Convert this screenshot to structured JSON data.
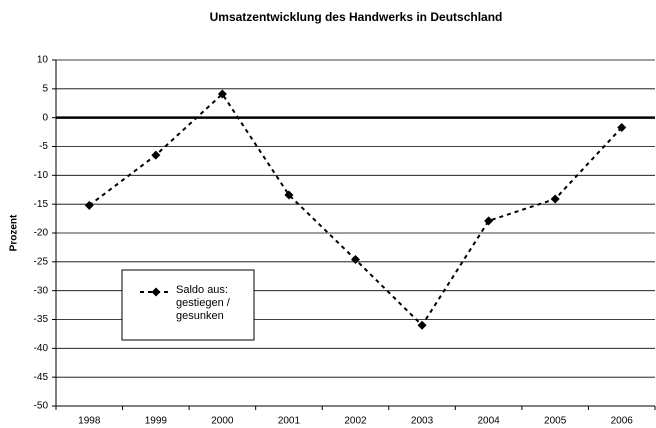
{
  "chart_data": {
    "type": "line",
    "title": "Umsatzentwicklung des Handwerks in Deutschland",
    "y_label": "Prozent",
    "categories": [
      "1998",
      "1999",
      "2000",
      "2001",
      "2002",
      "2003",
      "2004",
      "2005",
      "2006"
    ],
    "series": [
      {
        "name": "Saldo aus: gestiegen / gesunken",
        "color": "#000000",
        "values": [
          -15.2,
          -6.5,
          4.1,
          -13.4,
          -24.6,
          -36.0,
          -17.9,
          -14.1,
          -1.7
        ]
      }
    ],
    "ylim": [
      -50,
      10
    ],
    "yticks": [
      -50,
      -45,
      -40,
      -35,
      -30,
      -25,
      -20,
      -15,
      -10,
      -5,
      0,
      5,
      10
    ],
    "grid": true,
    "line_style": "dashed",
    "marker": "diamond"
  }
}
